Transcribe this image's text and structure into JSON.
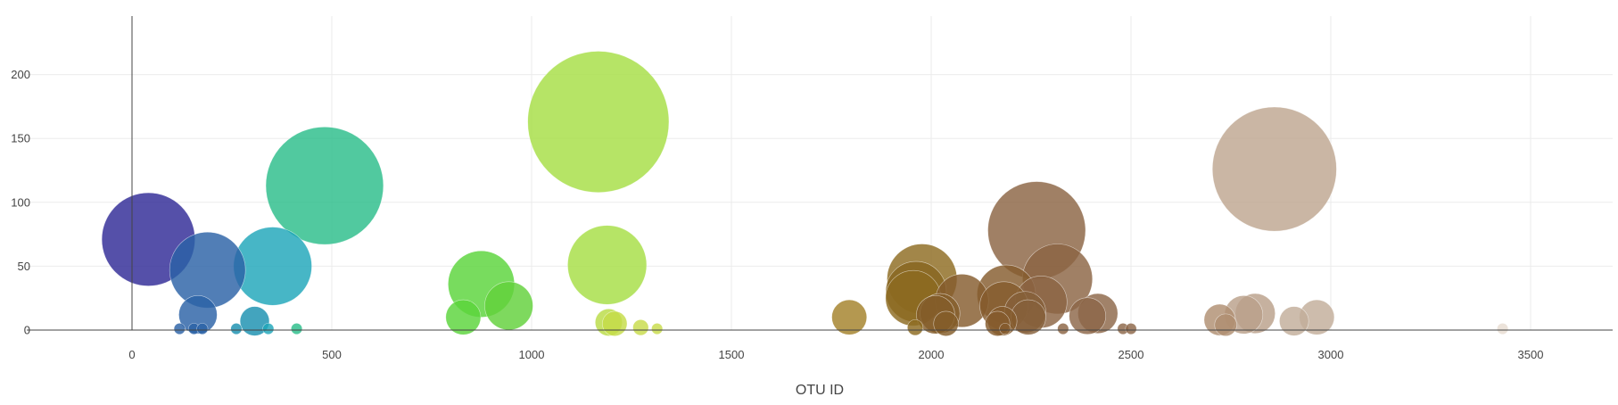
{
  "chart_data": {
    "type": "scatter",
    "subtype": "bubble",
    "xlabel": "OTU ID",
    "ylabel": "",
    "xlim": [
      -230,
      3700
    ],
    "ylim": [
      0,
      250
    ],
    "xticks": [
      0,
      500,
      1000,
      1500,
      2000,
      2500,
      3000,
      3500
    ],
    "yticks": [
      0,
      50,
      100,
      150,
      200
    ],
    "x_tick_labels": [
      "0",
      "500",
      "1000",
      "1500",
      "2000",
      "2500",
      "3000",
      "3500"
    ],
    "y_tick_labels": [
      "0",
      "50",
      "100",
      "150",
      "200"
    ],
    "grid": true,
    "legend": false,
    "size_encoding": "marker area proportional to y value",
    "color_encoding": "earth colorscale by OTU ID",
    "points": [
      {
        "x": 41,
        "y": 71,
        "color": "#2f2a96"
      },
      {
        "x": 189,
        "y": 47,
        "color": "#2b61a6"
      },
      {
        "x": 165,
        "y": 12,
        "color": "#2b61a6"
      },
      {
        "x": 352,
        "y": 50,
        "color": "#1ea6b9"
      },
      {
        "x": 307,
        "y": 7,
        "color": "#1a90b0"
      },
      {
        "x": 482,
        "y": 113,
        "color": "#2bbd8a"
      },
      {
        "x": 829,
        "y": 10,
        "color": "#5ad43a"
      },
      {
        "x": 874,
        "y": 36,
        "color": "#5ad43a"
      },
      {
        "x": 943,
        "y": 19,
        "color": "#62d13a"
      },
      {
        "x": 1167,
        "y": 163,
        "color": "#a6de44"
      },
      {
        "x": 1189,
        "y": 51,
        "color": "#a6de44"
      },
      {
        "x": 1193,
        "y": 6,
        "color": "#b9dc45"
      },
      {
        "x": 1208,
        "y": 5,
        "color": "#c4dc48"
      },
      {
        "x": 1795,
        "y": 10,
        "color": "#a4812a"
      },
      {
        "x": 1955,
        "y": 25,
        "color": "#8c6a20"
      },
      {
        "x": 1962,
        "y": 30,
        "color": "#876520"
      },
      {
        "x": 1977,
        "y": 40,
        "color": "#8e6b21"
      },
      {
        "x": 2011,
        "y": 12,
        "color": "#845d2a"
      },
      {
        "x": 2022,
        "y": 13,
        "color": "#845d2a"
      },
      {
        "x": 2037,
        "y": 5,
        "color": "#845d2a"
      },
      {
        "x": 2077,
        "y": 23,
        "color": "#855c2d"
      },
      {
        "x": 2166,
        "y": 5,
        "color": "#855c2d"
      },
      {
        "x": 2178,
        "y": 7,
        "color": "#855c2d"
      },
      {
        "x": 2182,
        "y": 19,
        "color": "#855c2d"
      },
      {
        "x": 2188,
        "y": 28,
        "color": "#855c2d"
      },
      {
        "x": 2235,
        "y": 14,
        "color": "#86603a"
      },
      {
        "x": 2243,
        "y": 10,
        "color": "#86603a"
      },
      {
        "x": 2264,
        "y": 78,
        "color": "#8b6443"
      },
      {
        "x": 2275,
        "y": 22,
        "color": "#8b6443"
      },
      {
        "x": 2316,
        "y": 40,
        "color": "#8b6443"
      },
      {
        "x": 2391,
        "y": 11,
        "color": "#8c6748"
      },
      {
        "x": 2417,
        "y": 13,
        "color": "#8c6748"
      },
      {
        "x": 2722,
        "y": 8,
        "color": "#b08f72"
      },
      {
        "x": 2737,
        "y": 4,
        "color": "#b08f72"
      },
      {
        "x": 2782,
        "y": 12,
        "color": "#b9a08a"
      },
      {
        "x": 2811,
        "y": 13,
        "color": "#b9a08a"
      },
      {
        "x": 2859,
        "y": 126,
        "color": "#bea690"
      },
      {
        "x": 2908,
        "y": 7,
        "color": "#c2ad9a"
      },
      {
        "x": 2965,
        "y": 10,
        "color": "#c2ad9a"
      },
      {
        "x": 119,
        "y": 1,
        "color": "#2b61a6"
      },
      {
        "x": 155,
        "y": 1,
        "color": "#2b61a6"
      },
      {
        "x": 176,
        "y": 1,
        "color": "#2b61a6"
      },
      {
        "x": 261,
        "y": 1,
        "color": "#1a90b0"
      },
      {
        "x": 341,
        "y": 1,
        "color": "#1ea6b9"
      },
      {
        "x": 412,
        "y": 1,
        "color": "#2bbd8a"
      },
      {
        "x": 1273,
        "y": 2,
        "color": "#c8dc4a"
      },
      {
        "x": 1314,
        "y": 1,
        "color": "#c8dc4a"
      },
      {
        "x": 1960,
        "y": 2,
        "color": "#8c6a20"
      },
      {
        "x": 2185,
        "y": 1,
        "color": "#855c2d"
      },
      {
        "x": 2330,
        "y": 1,
        "color": "#8b6443"
      },
      {
        "x": 2480,
        "y": 1,
        "color": "#8c6748"
      },
      {
        "x": 2500,
        "y": 1,
        "color": "#8c6748"
      },
      {
        "x": 3430,
        "y": 1,
        "color": "#e8ddd2"
      }
    ]
  }
}
